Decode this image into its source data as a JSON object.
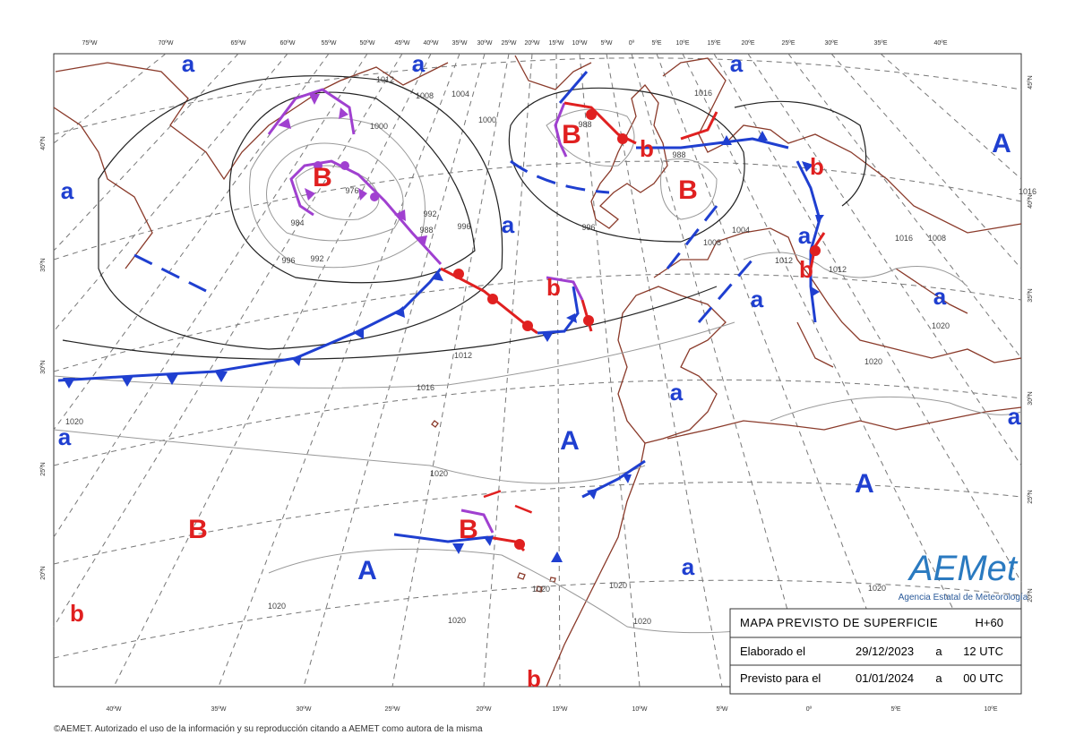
{
  "top_longitudes": [
    "75ºW",
    "70ºW",
    "65ºW",
    "60ºW",
    "55ºW",
    "50ºW",
    "45ºW",
    "40ºW",
    "35ºW",
    "30ºW",
    "25ºW",
    "20ºW",
    "15ºW",
    "10ºW",
    "5ºW",
    "0º",
    "5ºE",
    "10ºE",
    "15ºE",
    "20ºE",
    "25ºE",
    "30ºE",
    "35ºE",
    "40ºE"
  ],
  "bottom_longitudes": [
    "40ºW",
    "35ºW",
    "30ºW",
    "25ºW",
    "20ºW",
    "15ºW",
    "10ºW",
    "5ºW",
    "0º",
    "5ºE",
    "10ºE"
  ],
  "left_latitudes": [
    "40ºN",
    "35ºN",
    "30ºN",
    "25ºN",
    "20ºN"
  ],
  "right_latitudes": [
    "45ºN",
    "40ºN",
    "35ºN",
    "30ºN",
    "25ºN",
    "20ºN"
  ],
  "pressure_centers": [
    "a",
    "a",
    "a",
    "a",
    "A",
    "B",
    "b",
    "b",
    "B",
    "B",
    "a",
    "a",
    "b",
    "b",
    "a",
    "a",
    "a",
    "A",
    "a",
    "a",
    "A",
    "B",
    "B",
    "A",
    "a",
    "b",
    "b"
  ],
  "isobar_labels": [
    "1012",
    "1008",
    "1004",
    "1000",
    "1000",
    "996",
    "996",
    "992",
    "992",
    "988",
    "984",
    "976",
    "1012",
    "1016",
    "1020",
    "1020",
    "1020",
    "1020",
    "1020",
    "1020",
    "1020",
    "1020",
    "1020",
    "1020",
    "1016",
    "1008",
    "1016",
    "1012",
    "1012",
    "1008",
    "1004",
    "1016",
    "996",
    "988",
    "988"
  ],
  "info_box": {
    "title": "MAPA PREVISTO DE SUPERFICIE",
    "step": "H+60",
    "rows": [
      [
        "Elaborado el",
        "29/12/2023",
        "a",
        "12 UTC"
      ],
      [
        "Previsto para el",
        "01/01/2024",
        "a",
        "00 UTC"
      ]
    ]
  },
  "logo": {
    "name": "AEMet",
    "subtitle": "Agencia Estatal de Meteorología"
  },
  "footer": "©AEMET. Autorizado el uso de la información y su reproducción citando a AEMET como autora de la misma"
}
